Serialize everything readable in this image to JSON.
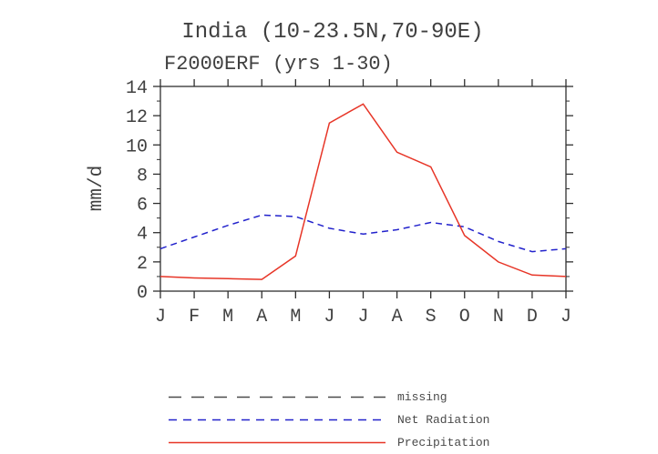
{
  "title": "India (10-23.5N,70-90E)",
  "subtitle": "F2000ERF (yrs 1-30)",
  "chart_data": {
    "type": "line",
    "title": "India (10-23.5N,70-90E)",
    "subtitle": "F2000ERF (yrs 1-30)",
    "xlabel": "",
    "ylabel": "mm/d",
    "ylim": [
      0,
      14
    ],
    "ytick_step": 2,
    "grid": false,
    "legend_position": "bottom",
    "categories": [
      "J",
      "F",
      "M",
      "A",
      "M",
      "J",
      "J",
      "A",
      "S",
      "O",
      "N",
      "D",
      "J"
    ],
    "series": [
      {
        "name": "missing",
        "color": "#4a4a4a",
        "style": "dashed",
        "values": []
      },
      {
        "name": "Net Radiation",
        "color": "#2222cc",
        "style": "dashed",
        "values": [
          2.9,
          3.7,
          4.5,
          5.2,
          5.1,
          4.3,
          3.9,
          4.2,
          4.7,
          4.4,
          3.4,
          2.7,
          2.9
        ]
      },
      {
        "name": "Precipitation",
        "color": "#e73527",
        "style": "solid",
        "values": [
          1.0,
          0.9,
          0.85,
          0.8,
          2.4,
          11.5,
          12.8,
          9.5,
          8.5,
          3.8,
          2.0,
          1.1,
          1.0
        ]
      }
    ]
  }
}
